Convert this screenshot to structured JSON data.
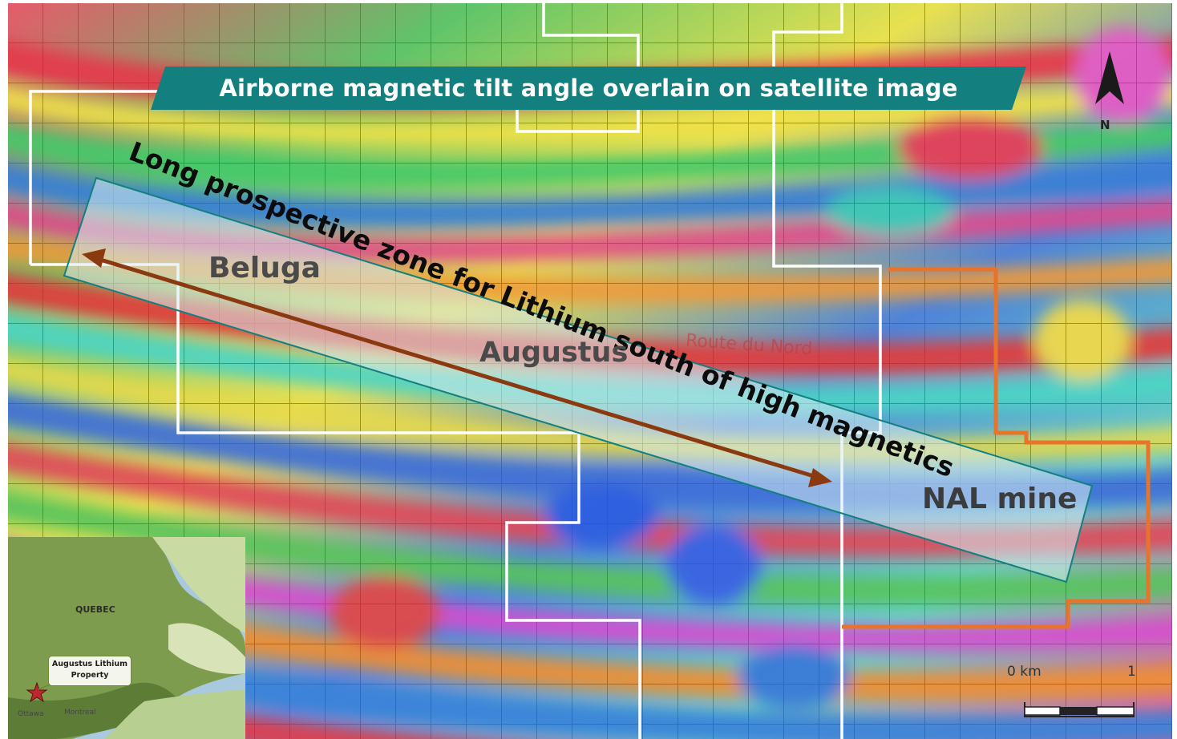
{
  "map": {
    "title": "Airborne magnetic tilt angle overlain on satellite image",
    "zone_label": "Long prospective zone for Lithium south of high magnetics",
    "places": {
      "beluga": "Beluga",
      "augustus": "Augustus",
      "nal_mine": "NAL mine",
      "road": "Route du Nord"
    },
    "north_arrow": "N",
    "scale_bar": {
      "start": "0 km",
      "end": "1"
    },
    "inset": {
      "province": "QUEBEC",
      "property_line1": "Augustus Lithium",
      "property_line2": "Property",
      "city1": "Ottawa",
      "city2": "Montreal"
    },
    "colors": {
      "title_banner": "#137f7f",
      "claims_outline": "#ffffff",
      "nal_boundary": "#e8732a",
      "trend_arrow": "#8b3a10",
      "zone_box": "#d7ecf2"
    }
  }
}
